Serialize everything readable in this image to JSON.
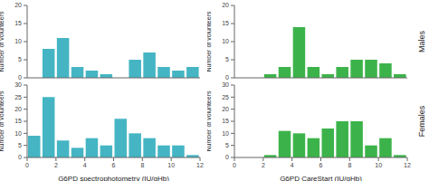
{
  "chart_data": [
    {
      "type": "histogram",
      "ylabel": "Number of volunteers",
      "bins": [
        0,
        1,
        2,
        3,
        4,
        5,
        6,
        7,
        8,
        9,
        10,
        11,
        12
      ],
      "values": [
        0,
        8,
        11,
        3,
        2,
        1,
        0,
        5,
        7,
        3,
        2,
        3
      ],
      "color": "#45b5c4",
      "xlim": [
        0,
        12
      ],
      "xticks": [
        0,
        2,
        4,
        6,
        8,
        10,
        12
      ],
      "ylim": [
        0,
        20
      ],
      "yticks": [
        0,
        5,
        10,
        15,
        20
      ],
      "tick_labels": "y"
    },
    {
      "type": "histogram",
      "xlabel": "G6PD spectrophotometry (IU/gHb)",
      "ylabel": "Number of volunteers",
      "bins": [
        0,
        1,
        2,
        3,
        4,
        5,
        6,
        7,
        8,
        9,
        10,
        11,
        12
      ],
      "values": [
        9,
        25,
        7,
        4,
        8,
        5,
        16,
        10,
        8,
        5,
        5,
        1
      ],
      "color": "#45b5c4",
      "xlim": [
        0,
        12
      ],
      "xticks": [
        0,
        2,
        4,
        6,
        8,
        10,
        12
      ],
      "ylim": [
        0,
        30
      ],
      "yticks": [
        0,
        5,
        10,
        15,
        20,
        25,
        30
      ]
    },
    {
      "type": "histogram",
      "ylabel": "Number of volunteers",
      "bins": [
        2,
        3,
        4,
        5,
        6,
        7,
        8,
        9,
        10,
        11,
        12
      ],
      "values": [
        1,
        3,
        14,
        3,
        1,
        3,
        5,
        5,
        4,
        1
      ],
      "color": "#3cb34a",
      "xlim": [
        0,
        12
      ],
      "xticks": [
        0,
        2,
        4,
        6,
        8,
        10,
        12
      ],
      "ylim": [
        0,
        20
      ],
      "yticks": [
        0,
        5,
        10,
        15,
        20
      ],
      "tick_labels": "y",
      "annotations": [
        "Males"
      ]
    },
    {
      "type": "histogram",
      "xlabel": "G6PD CareStart (IU/gHb)",
      "ylabel": "Number of volunteers",
      "bins": [
        2,
        3,
        4,
        5,
        6,
        7,
        8,
        9,
        10,
        11,
        12
      ],
      "values": [
        1,
        11,
        10,
        8,
        12,
        15,
        15,
        5,
        8,
        1
      ],
      "color": "#3cb34a",
      "xlim": [
        0,
        12
      ],
      "xticks": [
        0,
        2,
        4,
        6,
        8,
        10,
        12
      ],
      "ylim": [
        0,
        30
      ],
      "yticks": [
        0,
        5,
        10,
        15,
        20,
        25,
        30
      ],
      "annotations": [
        "Females"
      ]
    }
  ]
}
